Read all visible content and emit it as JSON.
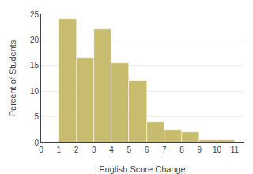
{
  "chart_data": {
    "type": "histogram",
    "bins": [
      0,
      1,
      2,
      3,
      4,
      5,
      6,
      7,
      8,
      9,
      10,
      11
    ],
    "counts": [
      0,
      24,
      16.5,
      22,
      15.5,
      12,
      4,
      2.5,
      2,
      0.5,
      0.5
    ],
    "color": "#c8bc6e",
    "xlabel": "English Score Change",
    "ylabel": "Percent of Students",
    "xlim": [
      0,
      11.5
    ],
    "xticks": [
      0,
      1,
      2,
      3,
      4,
      5,
      6,
      7,
      8,
      9,
      10,
      11
    ],
    "ylim": [
      0,
      25
    ],
    "yticks": [
      0,
      5,
      10,
      15,
      20,
      25
    ],
    "grid": true
  }
}
